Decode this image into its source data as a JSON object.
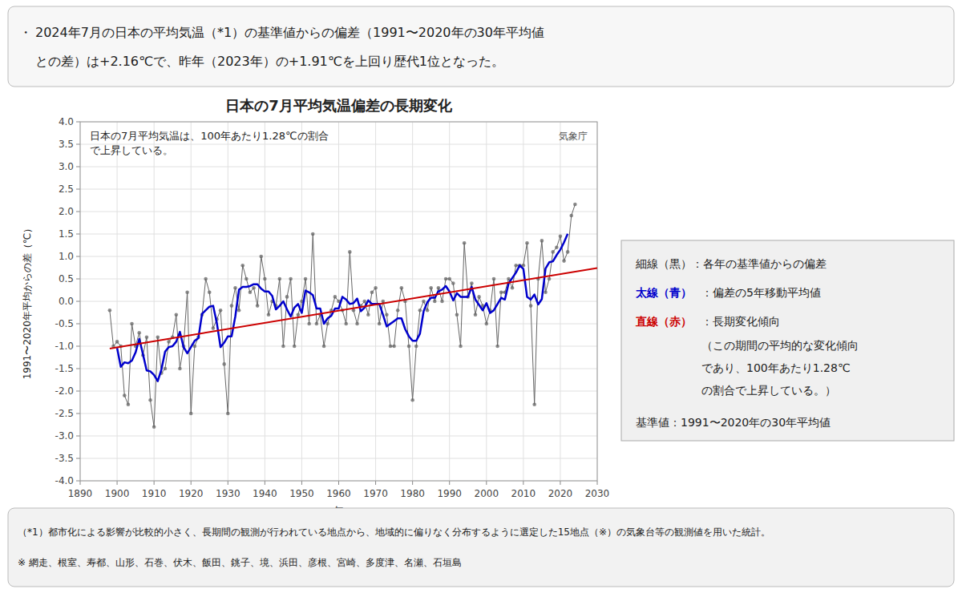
{
  "chart_data": {
    "type": "line",
    "title": "日本の7月平均気温偏差の長期変化",
    "x_label": "年",
    "y_label": "1991〜2020年平均からの差（℃）",
    "annotations": [
      "日本の7月平均気温は、100年あたり1.28℃の割合",
      "で上昇している。",
      "気象庁",
      "・",
      "2024年7月の日本の平均気温（*1）の基準値からの偏差（1991〜2020年の30年平均値",
      "との差）は+2.16℃で、昨年（2023年）の+1.91℃を上回り歴代1位となった。",
      "（*1）都市化による影響が比較的小さく、長期間の観測が行われている地点から、地域的に偏りなく分布するように選定した15地点（※）の気象台等の観測値を用いた統計。",
      "※ 網走、根室、寿都、山形、石巻、伏木、飯田、銚子、境、浜田、彦根、宮崎、多度津、名瀬、石垣島",
      "細線（黒）：各年の基準値からの偏差",
      "太線（青）",
      "：偏差の5年移動平均値",
      "直線（赤）",
      "：長期変化傾向",
      "（この期間の平均的な変化傾向",
      "であり、100年あたり1.28℃",
      "の割合で上昇している。）",
      "基準値：1991〜2020年の30年平均値"
    ],
    "grid": true,
    "xlim": [
      1890,
      2030
    ],
    "xticks": [
      1890,
      1900,
      1910,
      1920,
      1930,
      1940,
      1950,
      1960,
      1970,
      1980,
      1990,
      2000,
      2010,
      2020,
      2030
    ],
    "ylim": [
      -4.0,
      4.0
    ],
    "yticks": [
      {
        "value": -4.0,
        "label": "-4.0"
      },
      -3.5,
      {
        "value": -3.0,
        "label": "-3.0"
      },
      -2.5,
      {
        "value": -2.0,
        "label": "-2.0"
      },
      -1.5,
      {
        "value": -1.0,
        "label": "-1.0"
      },
      -0.5,
      {
        "value": 0.0,
        "label": "0.0"
      },
      0.5,
      {
        "value": 1.0,
        "label": "1.0"
      },
      1.5,
      {
        "value": 2.0,
        "label": "2.0"
      },
      2.5,
      {
        "value": 3.0,
        "label": "3.0"
      },
      3.5,
      {
        "value": 4.0,
        "label": "4.0"
      }
    ],
    "x": [
      1898,
      1899,
      1900,
      1901,
      1902,
      1903,
      1904,
      1905,
      1906,
      1907,
      1908,
      1909,
      1910,
      1911,
      1912,
      1913,
      1914,
      1915,
      1916,
      1917,
      1918,
      1919,
      1920,
      1921,
      1922,
      1923,
      1924,
      1925,
      1926,
      1927,
      1928,
      1929,
      1930,
      1931,
      1932,
      1933,
      1934,
      1935,
      1936,
      1937,
      1938,
      1939,
      1940,
      1941,
      1942,
      1943,
      1944,
      1945,
      1946,
      1947,
      1948,
      1949,
      1950,
      1951,
      1952,
      1953,
      1954,
      1955,
      1956,
      1957,
      1958,
      1959,
      1960,
      1961,
      1962,
      1963,
      1964,
      1965,
      1966,
      1967,
      1968,
      1969,
      1970,
      1971,
      1972,
      1973,
      1974,
      1975,
      1976,
      1977,
      1978,
      1979,
      1980,
      1981,
      1982,
      1983,
      1984,
      1985,
      1986,
      1987,
      1988,
      1989,
      1990,
      1991,
      1992,
      1993,
      1994,
      1995,
      1996,
      1997,
      1998,
      1999,
      2000,
      2001,
      2002,
      2003,
      2004,
      2005,
      2006,
      2007,
      2008,
      2009,
      2010,
      2011,
      2012,
      2013,
      2014,
      2015,
      2016,
      2017,
      2018,
      2019,
      2020,
      2021,
      2022,
      2023,
      2024
    ],
    "series": [
      {
        "type": "line",
        "color": "#666666",
        "marker": "circle",
        "values": [
          -0.2,
          -1.0,
          -0.9,
          -1.0,
          -2.1,
          -2.3,
          -0.5,
          -1.0,
          -0.7,
          -1.2,
          -0.8,
          -2.2,
          -2.8,
          -0.8,
          -1.6,
          -1.5,
          -0.9,
          -0.8,
          -0.3,
          -1.5,
          -1.0,
          0.2,
          -2.5,
          -1.0,
          -0.8,
          -0.3,
          0.5,
          0.2,
          -0.6,
          -0.4,
          -0.2,
          -1.4,
          -2.5,
          -0.1,
          0.3,
          -0.2,
          0.8,
          0.5,
          0.2,
          0.3,
          -0.1,
          1.0,
          0.5,
          -0.3,
          0.0,
          -0.1,
          0.5,
          -1.0,
          0.1,
          0.5,
          -1.0,
          -0.3,
          0.0,
          0.5,
          -0.5,
          1.5,
          -0.5,
          -0.3,
          -1.0,
          -0.5,
          -0.2,
          0.1,
          0.0,
          -0.2,
          -0.5,
          1.1,
          -0.2,
          -0.5,
          -0.1,
          0.0,
          -0.3,
          0.2,
          0.3,
          -0.5,
          0.0,
          -0.3,
          -1.0,
          -1.0,
          -0.2,
          0.3,
          0.0,
          -1.0,
          -2.2,
          -1.0,
          -0.2,
          0.0,
          -0.2,
          0.3,
          0.0,
          0.3,
          0.0,
          0.5,
          0.5,
          0.4,
          -0.3,
          -1.0,
          1.3,
          0.1,
          0.4,
          -0.3,
          0.1,
          -0.1,
          -0.5,
          -0.2,
          0.5,
          -1.0,
          0.2,
          0.2,
          0.5,
          0.3,
          0.8,
          0.8,
          0.8,
          1.3,
          -0.1,
          -2.3,
          0.5,
          1.35,
          0.2,
          0.5,
          1.1,
          1.2,
          1.45,
          0.9,
          1.1,
          1.91,
          2.16
        ]
      },
      {
        "type": "line",
        "color": "#0000cc",
        "values": [
          null,
          null,
          -1.04,
          -1.46,
          -1.36,
          -1.38,
          -1.32,
          -1.14,
          -0.84,
          -1.18,
          -1.54,
          -1.56,
          -1.64,
          -1.78,
          -1.52,
          -1.12,
          -1.02,
          -1.0,
          -0.9,
          -0.68,
          -1.02,
          -1.16,
          -1.02,
          -0.88,
          -0.82,
          -0.28,
          -0.2,
          -0.12,
          -0.1,
          -0.48,
          -1.02,
          -0.92,
          -0.78,
          -0.78,
          -0.34,
          0.26,
          0.32,
          0.32,
          0.34,
          0.38,
          0.38,
          0.28,
          0.22,
          0.22,
          0.12,
          -0.18,
          -0.1,
          0.0,
          -0.18,
          -0.34,
          -0.14,
          -0.06,
          -0.26,
          0.24,
          0.2,
          0.14,
          -0.16,
          -0.16,
          -0.5,
          -0.38,
          -0.32,
          -0.16,
          -0.16,
          0.1,
          0.04,
          -0.06,
          -0.04,
          0.06,
          -0.22,
          -0.14,
          0.02,
          -0.06,
          -0.06,
          -0.06,
          -0.3,
          -0.56,
          -0.5,
          -0.44,
          -0.38,
          -0.38,
          -0.62,
          -0.78,
          -0.88,
          -0.88,
          -0.72,
          -0.22,
          -0.02,
          0.08,
          0.08,
          0.22,
          0.26,
          0.34,
          0.22,
          0.02,
          0.18,
          0.1,
          0.1,
          0.1,
          0.32,
          0.04,
          -0.08,
          -0.2,
          -0.04,
          -0.26,
          -0.2,
          -0.06,
          0.08,
          0.04,
          0.4,
          0.52,
          0.64,
          0.8,
          0.72,
          0.1,
          0.04,
          0.15,
          -0.07,
          0.05,
          0.73,
          0.87,
          0.89,
          1.03,
          1.15,
          1.312,
          1.504,
          null,
          null
        ]
      },
      {
        "type": "line",
        "color": "#cc0000",
        "x": [
          1898,
          2030
        ],
        "values": [
          -1.0523,
          0.7428
        ]
      }
    ]
  }
}
